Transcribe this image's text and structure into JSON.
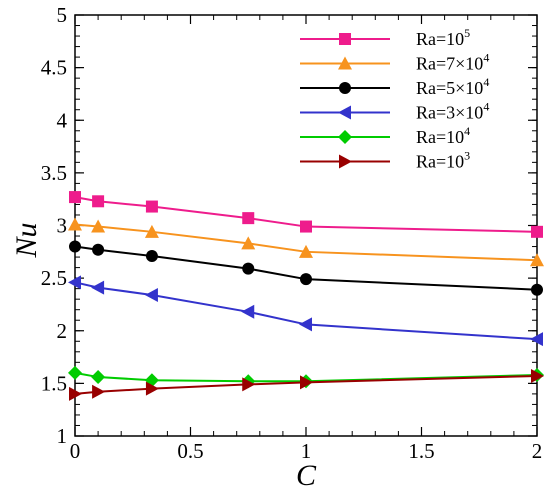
{
  "chart_data": {
    "type": "line",
    "xlabel": "C",
    "ylabel": "Nu",
    "xlim": [
      0,
      2
    ],
    "ylim": [
      1,
      5
    ],
    "xticks": [
      "0",
      "0.5",
      "1",
      "1.5",
      "2"
    ],
    "yticks": [
      "1",
      "1.5",
      "2",
      "2.5",
      "3",
      "3.5",
      "4",
      "4.5",
      "5"
    ],
    "grid": false,
    "legend_position": "top-right",
    "x": [
      0,
      0.1,
      0.333,
      0.75,
      1,
      2
    ],
    "series": [
      {
        "name": "Ra=10^5",
        "label_base": "Ra=10",
        "label_exp": "5",
        "color": "#ee1c8c",
        "marker": "square",
        "values": [
          3.27,
          3.23,
          3.18,
          3.07,
          2.99,
          2.94
        ]
      },
      {
        "name": "Ra=7×10^4",
        "label_base": "Ra=7×10",
        "label_exp": "4",
        "color": "#f7931e",
        "marker": "triangle-up",
        "values": [
          3.01,
          2.99,
          2.94,
          2.83,
          2.75,
          2.67
        ]
      },
      {
        "name": "Ra=5×10^4",
        "label_base": "Ra=5×10",
        "label_exp": "4",
        "color": "#000000",
        "marker": "circle",
        "values": [
          2.8,
          2.77,
          2.71,
          2.59,
          2.49,
          2.39
        ]
      },
      {
        "name": "Ra=3×10^4",
        "label_base": "Ra=3×10",
        "label_exp": "4",
        "color": "#3333cc",
        "marker": "triangle-left",
        "values": [
          2.46,
          2.41,
          2.34,
          2.18,
          2.06,
          1.92
        ]
      },
      {
        "name": "Ra=10^4",
        "label_base": "Ra=10",
        "label_exp": "4",
        "color": "#00cc00",
        "marker": "diamond",
        "values": [
          1.6,
          1.56,
          1.53,
          1.52,
          1.52,
          1.58
        ]
      },
      {
        "name": "Ra=10^3",
        "label_base": "Ra=10",
        "label_exp": "3",
        "color": "#990000",
        "marker": "triangle-right",
        "values": [
          1.4,
          1.42,
          1.45,
          1.49,
          1.51,
          1.57
        ]
      }
    ]
  }
}
